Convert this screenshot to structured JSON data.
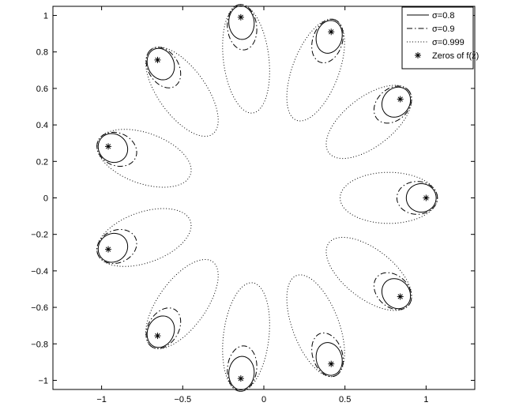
{
  "chart_data": {
    "type": "line",
    "title": "",
    "xlabel": "",
    "ylabel": "",
    "xlim": [
      -1.3,
      1.3
    ],
    "ylim": [
      -1.05,
      1.05
    ],
    "x_ticks": [
      -1,
      -0.5,
      0,
      0.5,
      1
    ],
    "x_tick_labels": [
      "−1",
      "−0.5",
      "0",
      "0.5",
      "1"
    ],
    "y_ticks": [
      -1,
      -0.8,
      -0.6,
      -0.4,
      -0.2,
      0,
      0.2,
      0.4,
      0.6,
      0.8,
      1
    ],
    "y_tick_labels": [
      "−1",
      "−0.8",
      "−0.6",
      "−0.4",
      "−0.2",
      "0",
      "0.2",
      "0.4",
      "0.6",
      "0.8",
      "1"
    ],
    "grid": false,
    "legend_position": "top-right",
    "zeros": {
      "name": "Zeros of f(z)",
      "x": [
        1.0,
        0.841,
        0.415,
        -0.142,
        -0.655,
        -0.959,
        -0.959,
        -0.655,
        -0.142,
        0.415,
        0.841
      ],
      "y": [
        0.0,
        0.541,
        0.91,
        0.99,
        0.756,
        0.282,
        -0.282,
        -0.756,
        -0.99,
        -0.91,
        -0.541
      ]
    },
    "series": [
      {
        "name": "σ=0.8",
        "style": "solid",
        "contour": {
          "a_tangent": 0.078,
          "b_radial": 0.092,
          "radial_center_shift": -0.03
        }
      },
      {
        "name": "σ=0.9",
        "style": "dashdot",
        "contour": {
          "a_tangent": 0.09,
          "b_radial": 0.125,
          "radial_center_shift": -0.055
        }
      },
      {
        "name": "σ=0.999",
        "style": "dotted",
        "contour": {
          "a_tangent": 0.14,
          "b_radial": 0.3,
          "radial_center_shift": -0.23
        }
      }
    ]
  }
}
